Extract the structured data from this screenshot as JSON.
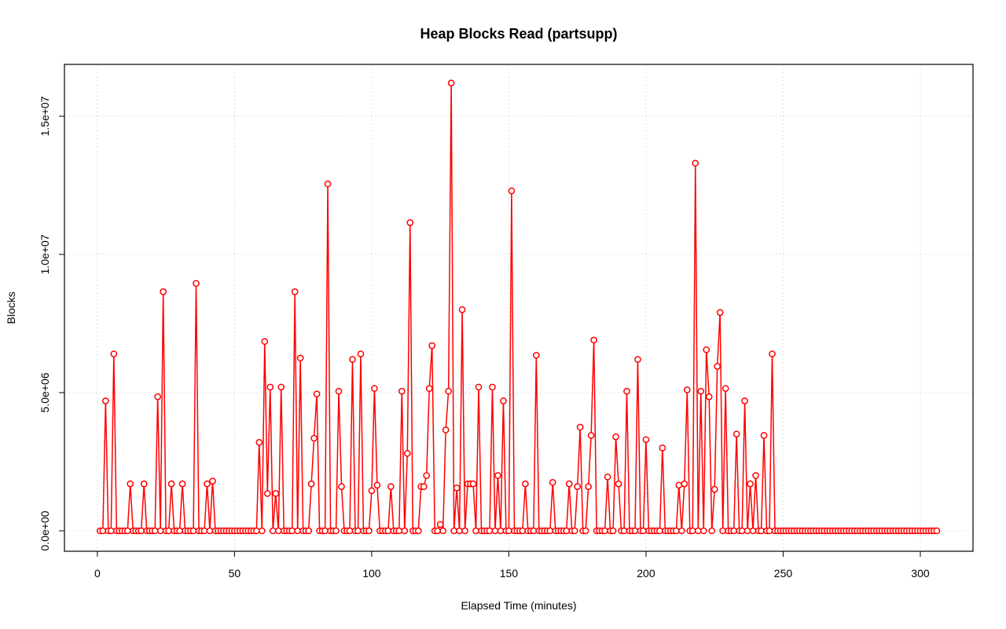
{
  "chart_data": {
    "type": "line",
    "title": "Heap Blocks Read (partsupp)",
    "x_label": "Elapsed Time (minutes)",
    "y_label": "Blocks",
    "xlim": [
      -12.0,
      319.2
    ],
    "ylim": [
      -740000,
      16875000
    ],
    "xticks": [
      0,
      50,
      100,
      150,
      200,
      250,
      300
    ],
    "yticks": [
      {
        "value": 0,
        "label": "0.0e+00"
      },
      {
        "value": 5000000,
        "label": "5.0e+06"
      },
      {
        "value": 10000000,
        "label": "1.0e+07"
      },
      {
        "value": 15000000,
        "label": "1.5e+07"
      }
    ],
    "grid": true,
    "x": [
      1,
      2,
      3,
      4,
      5,
      6,
      7,
      8,
      9,
      10,
      11,
      12,
      13,
      14,
      15,
      16,
      17,
      18,
      19,
      20,
      21,
      22,
      23,
      24,
      25,
      26,
      27,
      28,
      29,
      30,
      31,
      32,
      33,
      34,
      35,
      36,
      37,
      38,
      39,
      40,
      41,
      42,
      43,
      44,
      45,
      46,
      47,
      48,
      49,
      50,
      51,
      52,
      53,
      54,
      55,
      56,
      57,
      58,
      59,
      60,
      61,
      62,
      63,
      64,
      65,
      66,
      67,
      68,
      69,
      70,
      71,
      72,
      73,
      74,
      75,
      76,
      77,
      78,
      79,
      80,
      81,
      82,
      83,
      84,
      85,
      86,
      87,
      88,
      89,
      90,
      91,
      92,
      93,
      94,
      95,
      96,
      97,
      98,
      99,
      100,
      101,
      102,
      103,
      104,
      105,
      106,
      107,
      108,
      109,
      110,
      111,
      112,
      113,
      114,
      115,
      116,
      117,
      118,
      119,
      120,
      121,
      122,
      123,
      124,
      125,
      126,
      127,
      128,
      129,
      130,
      131,
      132,
      133,
      134,
      135,
      136,
      137,
      138,
      139,
      140,
      141,
      142,
      143,
      144,
      145,
      146,
      147,
      148,
      149,
      150,
      151,
      152,
      153,
      154,
      155,
      156,
      157,
      158,
      159,
      160,
      161,
      162,
      163,
      164,
      165,
      166,
      167,
      168,
      169,
      170,
      171,
      172,
      173,
      174,
      175,
      176,
      177,
      178,
      179,
      180,
      181,
      182,
      183,
      184,
      185,
      186,
      187,
      188,
      189,
      190,
      191,
      192,
      193,
      194,
      195,
      196,
      197,
      198,
      199,
      200,
      201,
      202,
      203,
      204,
      205,
      206,
      207,
      208,
      209,
      210,
      211,
      212,
      213,
      214,
      215,
      216,
      217,
      218,
      219,
      220,
      221,
      222,
      223,
      224,
      225,
      226,
      227,
      228,
      229,
      230,
      231,
      232,
      233,
      234,
      235,
      236,
      237,
      238,
      239,
      240,
      241,
      242,
      243,
      244,
      245,
      246,
      247,
      248,
      249,
      250,
      251,
      252,
      253,
      254,
      255,
      256,
      257,
      258,
      259,
      260,
      261,
      262,
      263,
      264,
      265,
      266,
      267,
      268,
      269,
      270,
      271,
      272,
      273,
      274,
      275,
      276,
      277,
      278,
      279,
      280,
      281,
      282,
      283,
      284,
      285,
      286,
      287,
      288,
      289,
      290,
      291,
      292,
      293,
      294,
      295,
      296,
      297,
      298,
      299,
      300,
      301,
      302,
      303,
      304,
      305,
      306
    ],
    "series": [
      {
        "color": "#ff0000",
        "values": [
          0,
          0,
          4700000,
          0,
          0,
          6400000,
          0,
          0,
          0,
          0,
          0,
          1700000,
          0,
          0,
          0,
          0,
          1700000,
          0,
          0,
          0,
          0,
          4850000,
          0,
          8650000,
          0,
          0,
          1700000,
          0,
          0,
          0,
          1700000,
          0,
          0,
          0,
          0,
          8950000,
          0,
          0,
          0,
          1700000,
          0,
          1800000,
          0,
          0,
          0,
          0,
          0,
          0,
          0,
          0,
          0,
          0,
          0,
          0,
          0,
          0,
          0,
          0,
          3200000,
          0,
          6850000,
          1350000,
          5200000,
          0,
          1350000,
          0,
          5200000,
          0,
          0,
          0,
          0,
          8650000,
          0,
          6250000,
          0,
          0,
          0,
          1700000,
          3350000,
          4950000,
          0,
          0,
          0,
          12550000,
          0,
          0,
          0,
          5050000,
          1600000,
          0,
          0,
          0,
          6200000,
          0,
          0,
          6400000,
          0,
          0,
          0,
          1450000,
          5150000,
          1650000,
          0,
          0,
          0,
          0,
          1600000,
          0,
          0,
          0,
          5050000,
          0,
          2800000,
          11150000,
          0,
          0,
          0,
          1600000,
          1600000,
          2000000,
          5150000,
          6700000,
          0,
          0,
          230000,
          0,
          3650000,
          5050000,
          16200000,
          0,
          1550000,
          0,
          8000000,
          0,
          1700000,
          1700000,
          1700000,
          0,
          5200000,
          0,
          0,
          0,
          0,
          5200000,
          0,
          2000000,
          0,
          4700000,
          0,
          0,
          12300000,
          0,
          0,
          0,
          0,
          1700000,
          0,
          0,
          0,
          6350000,
          0,
          0,
          0,
          0,
          0,
          1750000,
          0,
          0,
          0,
          0,
          0,
          1700000,
          0,
          0,
          1600000,
          3750000,
          0,
          0,
          1600000,
          3450000,
          6900000,
          0,
          0,
          0,
          0,
          1950000,
          0,
          0,
          3400000,
          1700000,
          0,
          0,
          5050000,
          0,
          0,
          0,
          6200000,
          0,
          0,
          3300000,
          0,
          0,
          0,
          0,
          0,
          3000000,
          0,
          0,
          0,
          0,
          0,
          1650000,
          0,
          1700000,
          5100000,
          0,
          0,
          13300000,
          0,
          5050000,
          0,
          6550000,
          4850000,
          0,
          1500000,
          5950000,
          7900000,
          0,
          5150000,
          0,
          0,
          0,
          3500000,
          0,
          0,
          4700000,
          0,
          1700000,
          0,
          2000000,
          0,
          0,
          3450000,
          0,
          0,
          6400000,
          0,
          0,
          0,
          0,
          0,
          0,
          0,
          0,
          0,
          0,
          0,
          0,
          0,
          0,
          0,
          0,
          0,
          0,
          0,
          0,
          0,
          0,
          0,
          0,
          0,
          0,
          0,
          0,
          0,
          0,
          0,
          0,
          0,
          0,
          0,
          0,
          0,
          0,
          0,
          0,
          0,
          0,
          0,
          0,
          0,
          0,
          0,
          0,
          0,
          0,
          0,
          0,
          0,
          0,
          0,
          0,
          0,
          0,
          0,
          0
        ]
      }
    ]
  }
}
